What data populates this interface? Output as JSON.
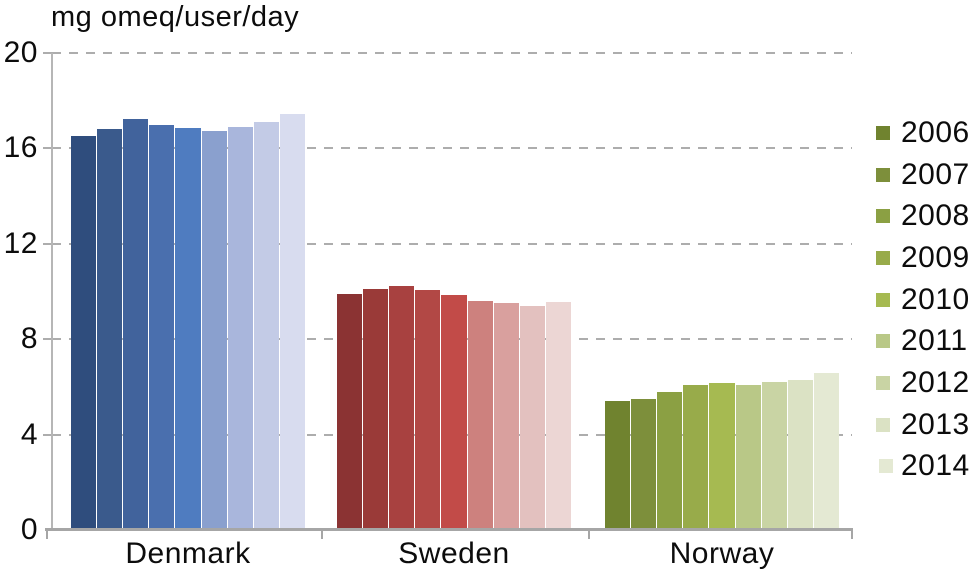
{
  "title": "mg omeq/user/day",
  "chart_data": {
    "type": "bar",
    "title": "mg omeq/user/day",
    "ylabel": "mg omeq/user/day",
    "xlabel": "",
    "ylim": [
      0,
      20
    ],
    "yticks": [
      0,
      4,
      8,
      12,
      16,
      20
    ],
    "grid": "horizontal-dashed",
    "legend_position": "right",
    "categories": [
      "Denmark",
      "Sweden",
      "Norway"
    ],
    "years": [
      "2006",
      "2007",
      "2008",
      "2009",
      "2010",
      "2011",
      "2012",
      "2013",
      "2014"
    ],
    "series": [
      {
        "category": "Denmark",
        "values": [
          16.5,
          16.8,
          17.25,
          17.0,
          16.85,
          16.75,
          16.9,
          17.1,
          17.45
        ],
        "colors": [
          "#2f4d7d",
          "#3a5a8c",
          "#41639c",
          "#4a6fae",
          "#4f7cc0",
          "#8aa0ce",
          "#a9b6dc",
          "#c3cbe6",
          "#d8dcef"
        ]
      },
      {
        "category": "Sweden",
        "values": [
          9.9,
          10.1,
          10.25,
          10.05,
          9.85,
          9.6,
          9.5,
          9.4,
          9.55
        ],
        "colors": [
          "#8b3333",
          "#9a3a38",
          "#a84140",
          "#b24845",
          "#c24b48",
          "#cd817e",
          "#d9a09e",
          "#e3c1bf",
          "#ecd6d4"
        ]
      },
      {
        "category": "Norway",
        "values": [
          5.4,
          5.5,
          5.8,
          6.1,
          6.15,
          6.1,
          6.2,
          6.3,
          6.6
        ],
        "colors": [
          "#70832f",
          "#7d8f3b",
          "#8ba043",
          "#98ab4a",
          "#a6ba51",
          "#b9c887",
          "#c9d4a4",
          "#dbe2c4",
          "#e4e9d3"
        ]
      }
    ],
    "legend_colors": [
      "#70832f",
      "#7d8f3b",
      "#8ba043",
      "#98ab4a",
      "#a6ba51",
      "#b9c887",
      "#c9d4a4",
      "#dbe2c4",
      "#e4e9d3"
    ]
  },
  "legend": {
    "items": [
      "2006",
      "2007",
      "2008",
      "2009",
      "2010",
      "2011",
      "2012",
      "2013",
      "2014"
    ]
  }
}
